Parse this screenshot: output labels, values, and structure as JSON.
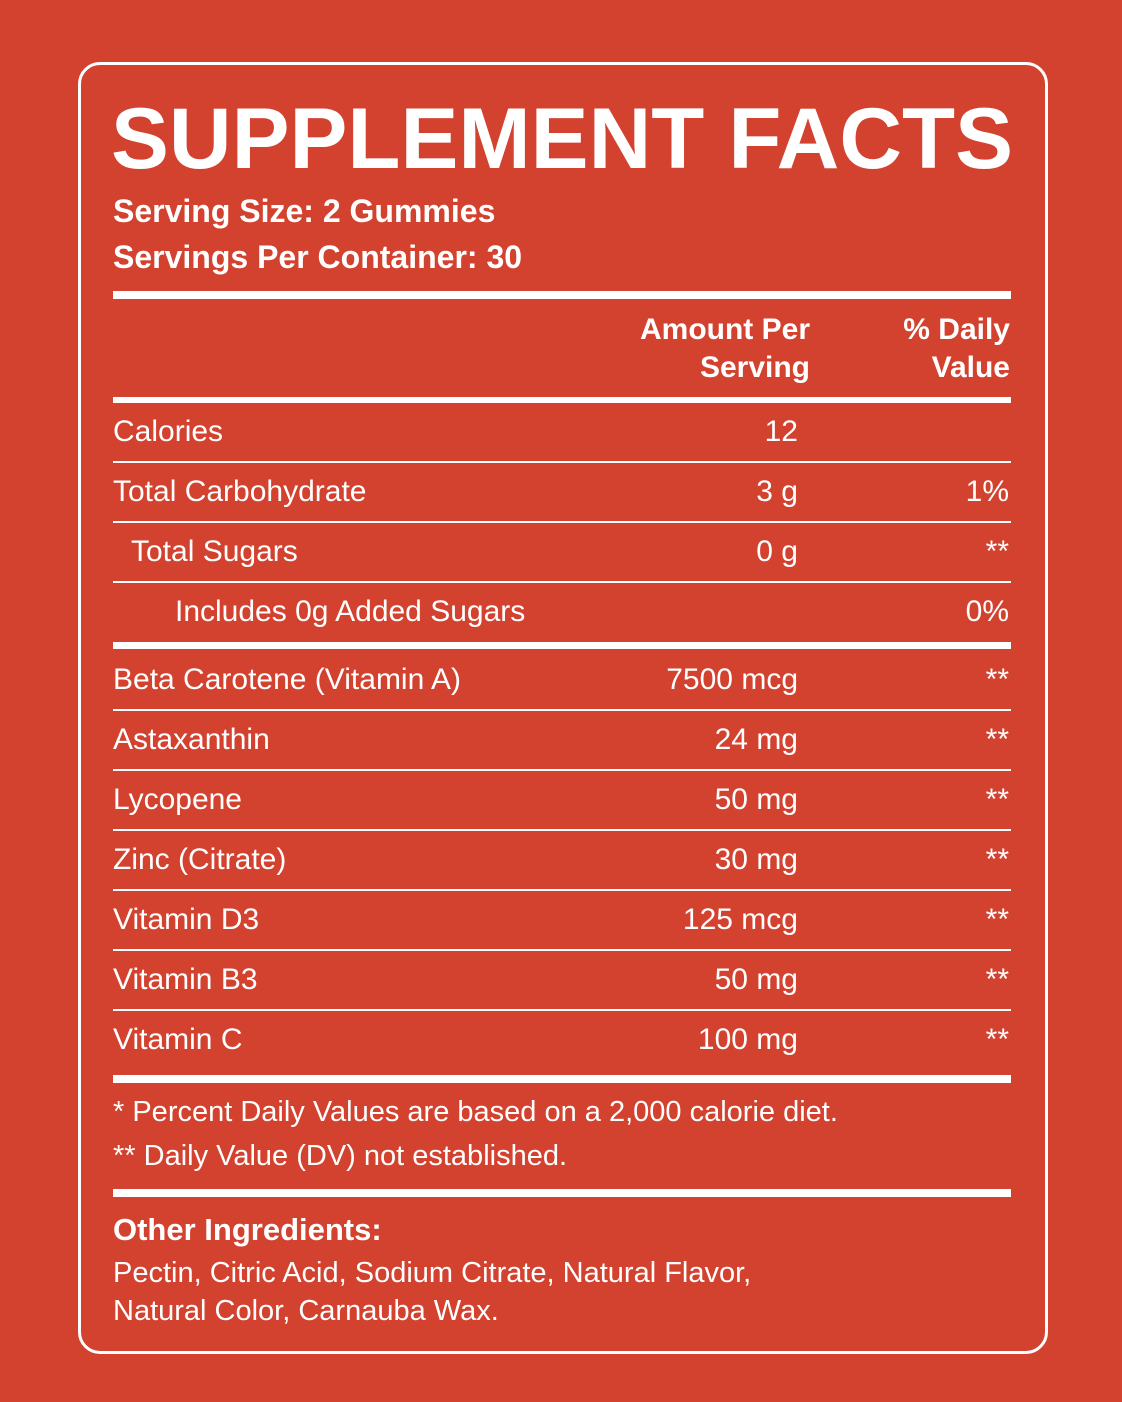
{
  "title": "SUPPLEMENT FACTS",
  "serving_size": "Serving Size: 2 Gummies",
  "servings_per_container": "Servings Per Container: 30",
  "header": {
    "amount": "Amount Per Serving",
    "daily_value": "% Daily Value"
  },
  "table": {
    "nutrition_rows": [
      {
        "name": "Calories",
        "amount": "12"
      },
      {
        "name": "Total Carbohydrate",
        "amount": "3 g",
        "dv": "1%"
      },
      {
        "name": "Total Sugars",
        "amount": "0 g",
        "dv": "**"
      },
      {
        "name": "Includes 0g Added Sugars",
        "dv": "0%"
      }
    ],
    "ingredient_rows": [
      {
        "name": "Beta Carotene (Vitamin A)",
        "amount": "7500 mcg",
        "dv": "**"
      },
      {
        "name": "Astaxanthin",
        "amount": "24 mg",
        "dv": "**"
      },
      {
        "name": "Lycopene",
        "amount": "50 mg",
        "dv": "**"
      },
      {
        "name": "Zinc (Citrate)",
        "amount": "30 mg",
        "dv": "**"
      },
      {
        "name": "Vitamin D3",
        "amount": "125 mcg",
        "dv": "**"
      },
      {
        "name": "Vitamin B3",
        "amount": "50 mg",
        "dv": "**"
      },
      {
        "name": "Vitamin C",
        "amount": "100 mg",
        "dv": "**"
      }
    ]
  },
  "footnotes": [
    "* Percent Daily Values are based on a 2,000 calorie diet.",
    "** Daily Value (DV) not established."
  ],
  "other_ingredients": {
    "title": "Other Ingredients:",
    "lines": [
      "Pectin, Citric Acid, Sodium Citrate, Natural Flavor,",
      "Natural Color, Carnauba Wax."
    ]
  }
}
